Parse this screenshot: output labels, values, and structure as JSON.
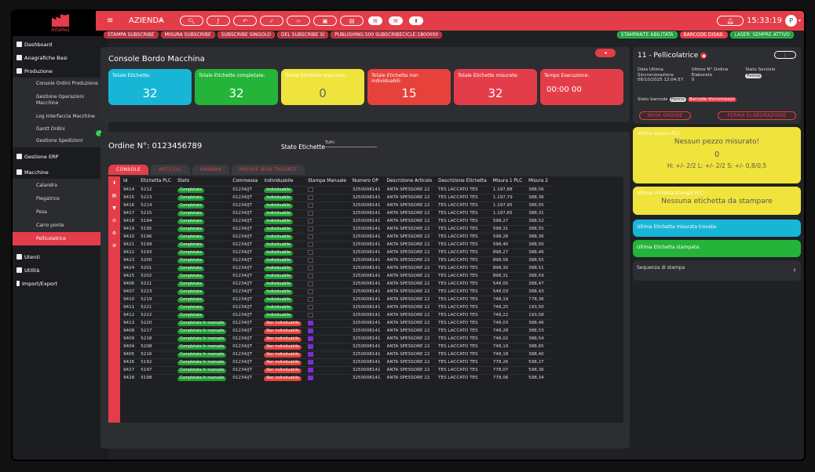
{
  "sidebar": {
    "logo_text": "AlfaMes",
    "items": [
      {
        "label": "Dashboard",
        "chevron": ""
      },
      {
        "label": "Anagrafiche Basi",
        "chevron": "⌄"
      },
      {
        "label": "Produzione",
        "chevron": "⌃"
      }
    ],
    "produzione_sub": [
      "Console Ordini Produzione",
      "Gestione Operazioni Macchine",
      "Log Interfaccia Macchine",
      "Gantt Ordini",
      "Gestione Spedizioni"
    ],
    "erp": {
      "label": "Gestione ERP",
      "chevron": "⌄"
    },
    "macchine": {
      "label": "Macchine",
      "chevron": "⌃"
    },
    "macchine_sub": [
      "Calandra",
      "Piegatrice",
      "Pesa",
      "Carro ponte",
      "Pellicolatrice"
    ],
    "bottom_items": [
      {
        "label": "Utenti",
        "chevron": "⌄"
      },
      {
        "label": "Utilità",
        "chevron": "⌄"
      },
      {
        "label": "Import/Export",
        "chevron": "⌄"
      }
    ]
  },
  "topbar": {
    "company": "AZIENDA",
    "time": "15:33:19",
    "avatar_letter": "P"
  },
  "strip": {
    "left": [
      "STAMPA SUBSCRIBE",
      "MISURA SUBSCRIBE",
      "SUBSCRIBE SINGOLO",
      "DEL SUBSCRIBE SI",
      "PUBLISHING:500 SUBSCRIBECICLE:1800000"
    ],
    "right": [
      "STAMPANTE ABILITATA",
      "BARCODE DISAB.",
      "LASER: SEMPRE ATTIVO"
    ]
  },
  "console": {
    "title": "Console Bordo Macchina",
    "cards": [
      {
        "label": "Totale Etichette:",
        "value": "32"
      },
      {
        "label": "Totale Etichette completate:",
        "value": "32"
      },
      {
        "label": "Totale Etichette mancanti:",
        "value": "0"
      },
      {
        "label": "Totale Etichette non individuabili:",
        "value": "15"
      },
      {
        "label": "Totale Etichette misurate:",
        "value": "32"
      },
      {
        "label": "Tempo Esecuzione:",
        "value": "00:00 00"
      }
    ]
  },
  "order": {
    "title": "Ordine N°: 0123456789",
    "stato_label": "Stato Etichette",
    "stato_value": "Tutti",
    "tabs": [
      "CONSOLE",
      "ARTICOLI",
      "KANBAN",
      "MISURE NON TROVATE"
    ],
    "columns": [
      "Id",
      "Etichetta PLC",
      "Stato",
      "Commessa",
      "Individuabile",
      "Stampa Manuale",
      "Numero OP",
      "Descrizione Articolo",
      "Descrizione Etichetta",
      "Misura 1 PLC",
      "Misura 2"
    ],
    "rows": [
      [
        "9414",
        "5212",
        "Completata",
        "01234/JT",
        "Individuabile",
        "0",
        "3250008141",
        "ANTA SPESSORE 22",
        "TES LACCATO TES",
        "1.197,88",
        "388,56"
      ],
      [
        "9415",
        "5213",
        "Completata",
        "01234/JT",
        "Individuabile",
        "0",
        "3250008141",
        "ANTA SPESSORE 22",
        "TES LACCATO TES",
        "1.197,79",
        "388,36"
      ],
      [
        "9416",
        "5214",
        "Completata",
        "01234/JT",
        "Individuabile",
        "0",
        "3250008141",
        "ANTA SPESSORE 22",
        "TES LACCATO TES",
        "1.197,95",
        "388,55"
      ],
      [
        "9417",
        "5215",
        "Completata",
        "01234/JT",
        "Individuabile",
        "0",
        "3250008141",
        "ANTA SPESSORE 22",
        "TES LACCATO TES",
        "1.197,65",
        "388,31"
      ],
      [
        "9418",
        "5194",
        "Completata",
        "01234/JT",
        "Individuabile",
        "0",
        "3250008141",
        "ANTA SPESSORE 22",
        "TES LACCATO TES",
        "598,27",
        "388,52"
      ],
      [
        "9419",
        "5195",
        "Completata",
        "01234/JT",
        "Individuabile",
        "0",
        "3250008141",
        "ANTA SPESSORE 22",
        "TES LACCATO TES",
        "598,31",
        "388,55"
      ],
      [
        "9420",
        "5196",
        "Completata",
        "01234/JT",
        "Individuabile",
        "0",
        "3250008141",
        "ANTA SPESSORE 22",
        "TES LACCATO TES",
        "598,26",
        "388,36"
      ],
      [
        "9421",
        "5199",
        "Completata",
        "01234/JT",
        "Individuabile",
        "0",
        "3250008141",
        "ANTA SPESSORE 22",
        "TES LACCATO TES",
        "598,40",
        "388,50"
      ],
      [
        "9422",
        "5193",
        "Completata",
        "01234/JT",
        "Individuabile",
        "0",
        "3250008141",
        "ANTA SPESSORE 22",
        "TES LACCATO TES",
        "898,27",
        "388,46"
      ],
      [
        "9423",
        "5200",
        "Completata",
        "01234/JT",
        "Individuabile",
        "0",
        "3250008141",
        "ANTA SPESSORE 22",
        "TES LACCATO TES",
        "898,56",
        "388,55"
      ],
      [
        "9424",
        "5201",
        "Completata",
        "01234/JT",
        "Individuabile",
        "0",
        "3250008141",
        "ANTA SPESSORE 22",
        "TES LACCATO TES",
        "898,30",
        "388,51"
      ],
      [
        "9425",
        "5202",
        "Completata",
        "01234/JT",
        "Individuabile",
        "0",
        "3250008141",
        "ANTA SPESSORE 22",
        "TES LACCATO TES",
        "898,31",
        "388,59"
      ],
      [
        "9406",
        "5211",
        "Completata",
        "01234/JT",
        "Individuabile",
        "0",
        "3250008141",
        "ANTA SPESSORE 22",
        "TES LACCATO TES",
        "548,05",
        "388,47"
      ],
      [
        "9407",
        "5223",
        "Completata",
        "01234/JT",
        "Individuabile",
        "0",
        "3250008141",
        "ANTA SPESSORE 22",
        "TES LACCATO TES",
        "548,03",
        "388,43"
      ],
      [
        "9410",
        "5219",
        "Completata",
        "01234/JT",
        "Individuabile",
        "0",
        "3250008141",
        "ANTA SPESSORE 22",
        "TES LACCATO TES",
        "748,19",
        "778,36"
      ],
      [
        "9411",
        "5221",
        "Completata",
        "01234/JT",
        "Individuabile",
        "0",
        "3250008141",
        "ANTA SPESSORE 22",
        "TES LACCATO TES",
        "748,25",
        "193,50"
      ],
      [
        "9412",
        "5222",
        "Completata",
        "01234/JT",
        "Individuabile",
        "0",
        "3250008141",
        "ANTA SPESSORE 22",
        "TES LACCATO TES",
        "748,22",
        "193,58"
      ],
      [
        "9413",
        "5220",
        "Completata In manuale",
        "01234/JT",
        "Non individuabile",
        "1",
        "3250008141",
        "ANTA SPESSORE 22",
        "TES LACCATO TES",
        "748,03",
        "388,46"
      ],
      [
        "9408",
        "5217",
        "Completata In manuale",
        "01234/JT",
        "Non individuabile",
        "1",
        "3250008141",
        "ANTA SPESSORE 22",
        "TES LACCATO TES",
        "748,28",
        "388,53"
      ],
      [
        "9409",
        "5218",
        "Completata In manuale",
        "01234/JT",
        "Non individuabile",
        "1",
        "3250008141",
        "ANTA SPESSORE 22",
        "TES LACCATO TES",
        "748,02",
        "388,54"
      ],
      [
        "9404",
        "5208",
        "Completata In manuale",
        "01234/JT",
        "Non individuabile",
        "1",
        "3250008141",
        "ANTA SPESSORE 22",
        "TES LACCATO TES",
        "748,19",
        "388,65"
      ],
      [
        "9405",
        "5216",
        "Completata In manuale",
        "01234/JT",
        "Non individuabile",
        "1",
        "3250008141",
        "ANTA SPESSORE 22",
        "TES LACCATO TES",
        "748,18",
        "388,40"
      ],
      [
        "9426",
        "5192",
        "Completata In manuale",
        "01234/JT",
        "Non individuabile",
        "1",
        "3250008141",
        "ANTA SPESSORE 22",
        "TES LACCATO TES",
        "778,26",
        "598,27"
      ],
      [
        "9427",
        "5197",
        "Completata In manuale",
        "01234/JT",
        "Non individuabile",
        "1",
        "3250008141",
        "ANTA SPESSORE 22",
        "TES LACCATO TES",
        "778,07",
        "598,36"
      ],
      [
        "9428",
        "5198",
        "Completata In manuale",
        "01234/JT",
        "Non individuabile",
        "1",
        "3250008141",
        "ANTA SPESSORE 22",
        "TES LACCATO TES",
        "778,06",
        "598,34"
      ]
    ]
  },
  "machine": {
    "title": "11 - Pellicolatrice",
    "col1_label": "Data Ultima Sincronizzazione",
    "col1_value": "08/10/2025 12:04:57",
    "col2_label": "Ultimo N° Ordine Elaborato",
    "col2_value": "0",
    "col3_label": "Stato Servizio",
    "col3_value": "Fermo",
    "barcode_label": "Stato barcode",
    "barcode_state": "Fermo",
    "barcode_status": "Barcode disconnesso",
    "btn_invia": "INVIA ORDINE",
    "btn_ferma": "FERMA ELABORAZIONE"
  },
  "plc": {
    "measure_label": "Ultima misura PLC:",
    "measure_msg": "Nessun pezzo misurato!",
    "measure_value": "0",
    "tolerance": "H: +/- 2/2 L: +/- 2/2 S: +/- 0,8/0,5",
    "print_label": "Ultima richiesta stampa PLC:",
    "print_msg": "Nessuna etichetta da stampare",
    "found_label": "Ultima Etichetta misurata trovata:",
    "printed_label": "Ultima Etichetta stampata:",
    "sequence_label": "Sequenza di stampa"
  }
}
